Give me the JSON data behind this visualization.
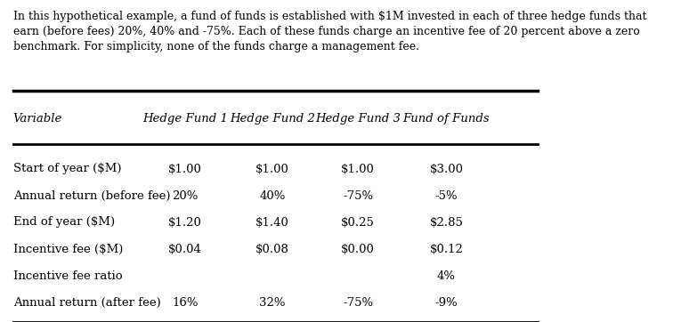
{
  "description_text": "In this hypothetical example, a fund of funds is established with $1M invested in each of three hedge funds that\nearn (before fees) 20%, 40% and -75%. Each of these funds charge an incentive fee of 20 percent above a zero\nbenchmark. For simplicity, none of the funds charge a management fee.",
  "headers": [
    "Variable",
    "Hedge Fund 1",
    "Hedge Fund 2",
    "Hedge Fund 3",
    "Fund of Funds"
  ],
  "rows": [
    [
      "Start of year ($M)",
      "$1.00",
      "$1.00",
      "$1.00",
      "$3.00"
    ],
    [
      "Annual return (before fee)",
      "20%",
      "40%",
      "-75%",
      "-5%"
    ],
    [
      "End of year ($M)",
      "$1.20",
      "$1.40",
      "$0.25",
      "$2.85"
    ],
    [
      "Incentive fee ($M)",
      "$0.04",
      "$0.08",
      "$0.00",
      "$0.12"
    ],
    [
      "Incentive fee ratio",
      "",
      "",
      "",
      "4%"
    ],
    [
      "Annual return (after fee)",
      "16%",
      "32%",
      "-75%",
      "-9%"
    ]
  ],
  "bg_color": "#ffffff",
  "text_color": "#000000",
  "header_font_size": 9.5,
  "body_font_size": 9.5,
  "desc_font_size": 9.0
}
